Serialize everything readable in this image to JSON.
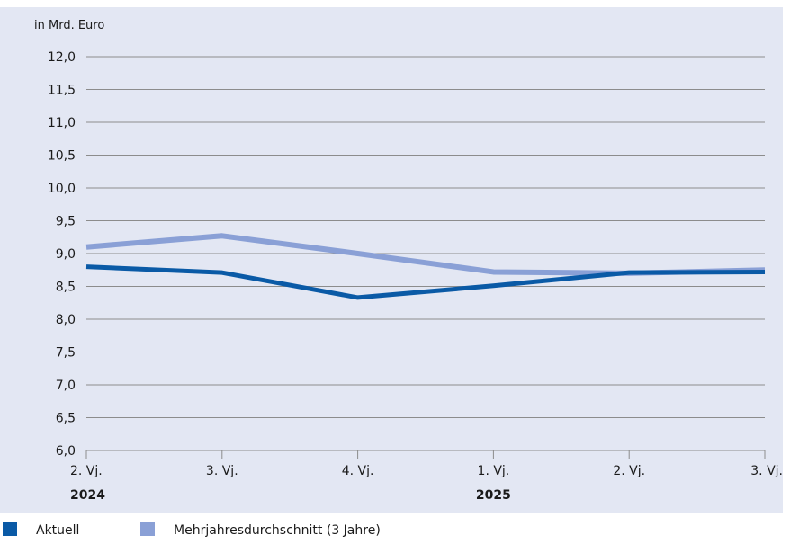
{
  "chart_data": {
    "type": "line",
    "ylabel": "in Mrd. Euro",
    "ylim": [
      6.0,
      12.0
    ],
    "y_ticks": [
      "6,0",
      "6,5",
      "7,0",
      "7,5",
      "8,0",
      "8,5",
      "9,0",
      "9,5",
      "10,0",
      "10,5",
      "11,0",
      "11,5",
      "12,0"
    ],
    "categories": [
      "2. Vj.",
      "3. Vj.",
      "4. Vj.",
      "1. Vj.",
      "2. Vj.",
      "3. Vj."
    ],
    "years": [
      {
        "label": "2024",
        "category_index": 0
      },
      {
        "label": "2025",
        "category_index": 3
      }
    ],
    "series": [
      {
        "name": "Aktuell",
        "color": "#0a5aa6",
        "values": [
          8.8,
          8.71,
          8.33,
          8.51,
          8.71,
          8.72
        ]
      },
      {
        "name": "Mehrjahresdurchschnitt (3 Jahre)",
        "color": "#8aa0d6",
        "values": [
          9.1,
          9.27,
          9.0,
          8.72,
          8.7,
          8.75
        ]
      }
    ],
    "grid": true,
    "legend_position": "bottom-left"
  },
  "colors": {
    "plot_background": "#e3e7f3",
    "grid": "#8c8c8c"
  }
}
